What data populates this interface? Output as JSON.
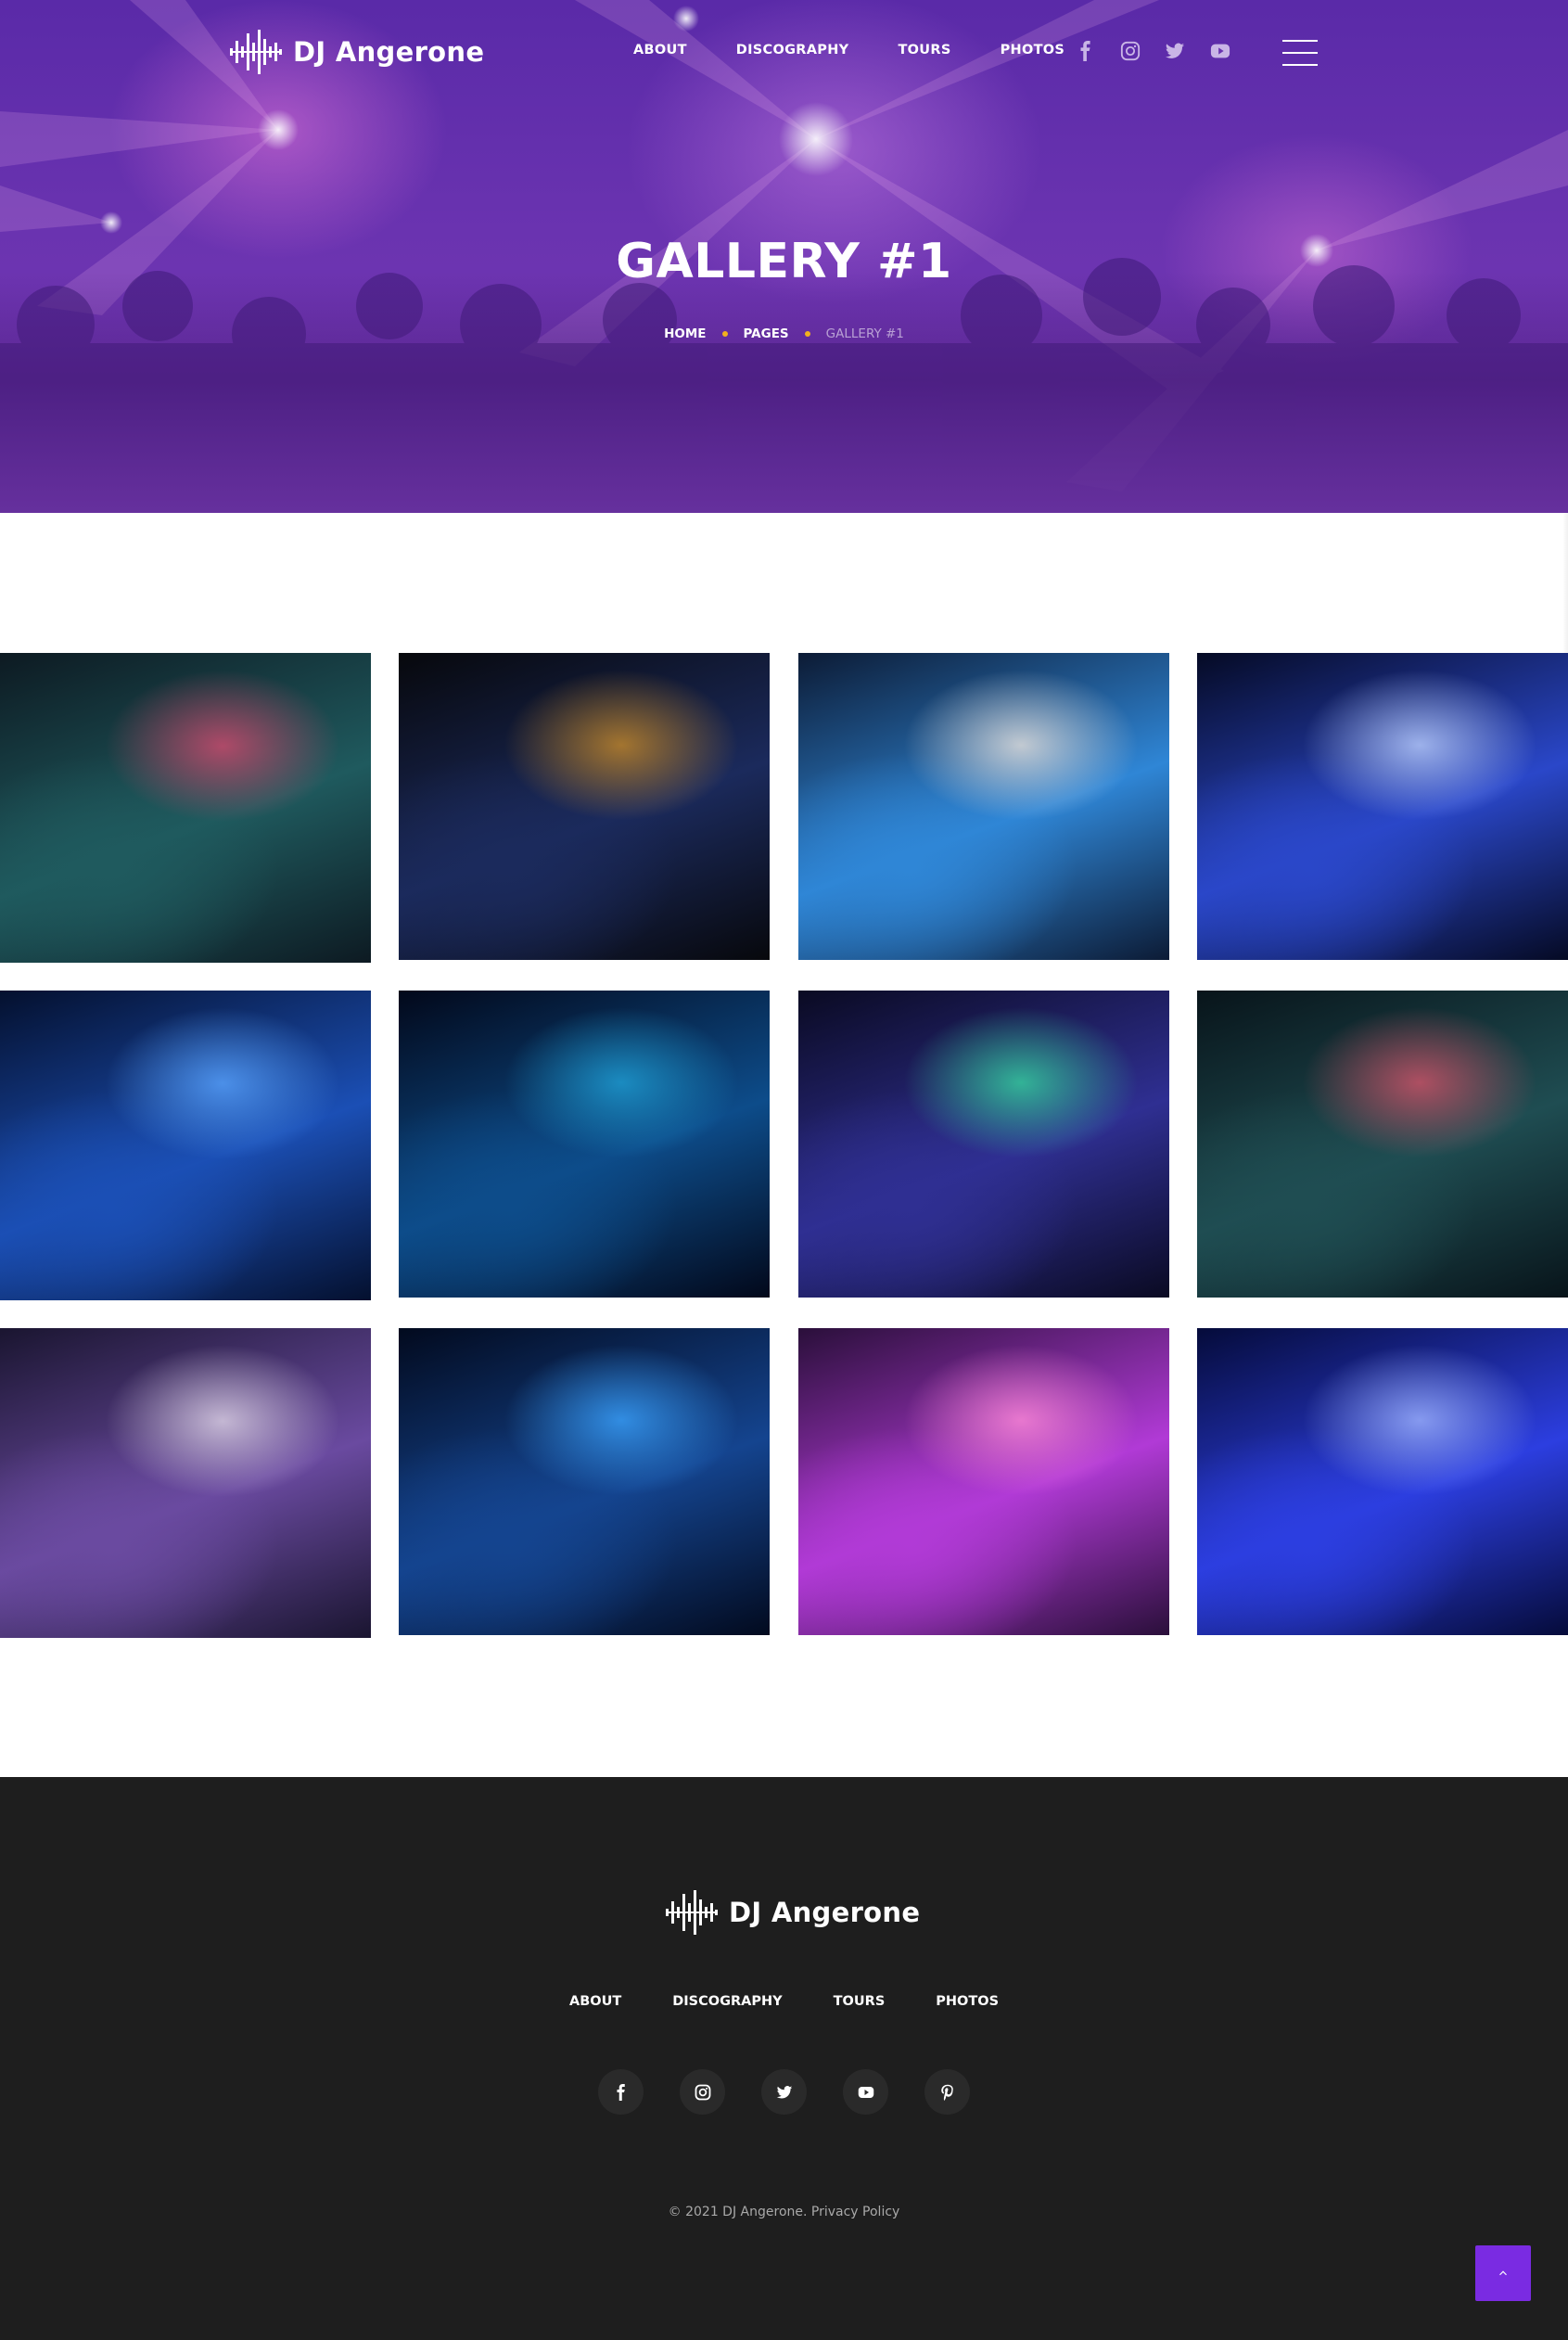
{
  "brand": {
    "name": "DJ Angerone",
    "accent_color": "#7a2be2",
    "breadcrumb_dot_color": "#f2b01e",
    "footer_bg": "#1e1e1e"
  },
  "header": {
    "nav": [
      {
        "label": "ABOUT"
      },
      {
        "label": "DISCOGRAPHY"
      },
      {
        "label": "TOURS"
      },
      {
        "label": "PHOTOS"
      }
    ],
    "social_icons": [
      "facebook-icon",
      "instagram-icon",
      "twitter-icon",
      "youtube-icon"
    ],
    "menu_icon": "hamburger-menu-icon"
  },
  "hero": {
    "title": "GALLERY #1",
    "breadcrumb": [
      {
        "label": "HOME"
      },
      {
        "label": "PAGES"
      },
      {
        "label": "GALLERY #1"
      }
    ]
  },
  "gallery": {
    "photos": [
      {
        "name": "photo-club-crowd-dj-deck",
        "colors": [
          "#0d1a22",
          "#1f5a5e",
          "#d34a6f"
        ]
      },
      {
        "name": "photo-woman-in-club",
        "colors": [
          "#07080c",
          "#1b2a5c",
          "#c78a2a"
        ]
      },
      {
        "name": "photo-dj-facing-crowd",
        "colors": [
          "#0c1b35",
          "#2f86d6",
          "#e9e2dc"
        ]
      },
      {
        "name": "photo-blue-stage-crowd",
        "colors": [
          "#050a24",
          "#2a47c9",
          "#bcd0ff"
        ]
      },
      {
        "name": "photo-hands-on-mixer",
        "colors": [
          "#04102e",
          "#1b4fb5",
          "#59a4ff"
        ]
      },
      {
        "name": "photo-dj-arms-raised",
        "colors": [
          "#02081a",
          "#0d4c8a",
          "#1fa0d6"
        ]
      },
      {
        "name": "photo-disco-ball",
        "colors": [
          "#0a0a22",
          "#2f2f92",
          "#36d6a0"
        ]
      },
      {
        "name": "photo-man-seated-graffiti",
        "colors": [
          "#08141a",
          "#1f4d52",
          "#d3546a"
        ]
      },
      {
        "name": "photo-crowded-dance-floor",
        "colors": [
          "#1a1530",
          "#6a4aa0",
          "#e0d6e8"
        ]
      },
      {
        "name": "photo-dj-mixer-blue",
        "colors": [
          "#020a1e",
          "#14448f",
          "#3aa3ff"
        ]
      },
      {
        "name": "photo-dj-headphones-pink",
        "colors": [
          "#2a0f3a",
          "#b13ad6",
          "#ff8ad8"
        ]
      },
      {
        "name": "photo-two-djs-blue",
        "colors": [
          "#050b3a",
          "#2c3ee0",
          "#9fb4ff"
        ]
      }
    ]
  },
  "footer": {
    "nav": [
      {
        "label": "ABOUT"
      },
      {
        "label": "DISCOGRAPHY"
      },
      {
        "label": "TOURS"
      },
      {
        "label": "PHOTOS"
      }
    ],
    "social_icons": [
      "facebook-icon",
      "instagram-icon",
      "twitter-icon",
      "youtube-icon",
      "pinterest-icon"
    ],
    "copyright": "©  2021 DJ Angerone.",
    "privacy_label": "Privacy Policy",
    "back_to_top_icon": "chevron-up-icon"
  }
}
